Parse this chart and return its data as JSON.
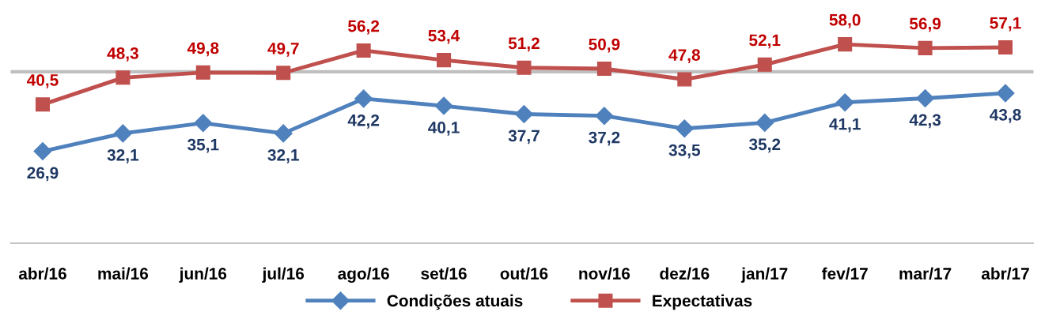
{
  "chart_data": {
    "type": "line",
    "categories": [
      "abr/16",
      "mai/16",
      "jun/16",
      "jul/16",
      "ago/16",
      "set/16",
      "out/16",
      "nov/16",
      "dez/16",
      "jan/17",
      "fev/17",
      "mar/17",
      "abr/17"
    ],
    "series": [
      {
        "name": "Condições atuais",
        "color": "#4f81bd",
        "marker": "diamond",
        "values": [
          26.9,
          32.1,
          35.1,
          32.1,
          42.2,
          40.1,
          37.7,
          37.2,
          33.5,
          35.2,
          41.1,
          42.3,
          43.8
        ],
        "value_labels": [
          "26,9",
          "32,1",
          "35,1",
          "32,1",
          "42,2",
          "40,1",
          "37,7",
          "37,2",
          "33,5",
          "35,2",
          "41,1",
          "42,3",
          "43,8"
        ]
      },
      {
        "name": "Expectativas",
        "color": "#c0504d",
        "marker": "square",
        "values": [
          40.5,
          48.3,
          49.8,
          49.7,
          56.2,
          53.4,
          51.2,
          50.9,
          47.8,
          52.1,
          58.0,
          56.9,
          57.1
        ],
        "value_labels": [
          "40,5",
          "48,3",
          "49,8",
          "49,7",
          "56,2",
          "53,4",
          "51,2",
          "50,9",
          "47,8",
          "52,1",
          "58,0",
          "56,9",
          "57,1"
        ]
      }
    ],
    "ref_lines": [
      {
        "axis": "y",
        "value": 50,
        "color": "#bfbfbf"
      }
    ],
    "grid": false,
    "legend": "bottom",
    "line_style": "solid"
  }
}
